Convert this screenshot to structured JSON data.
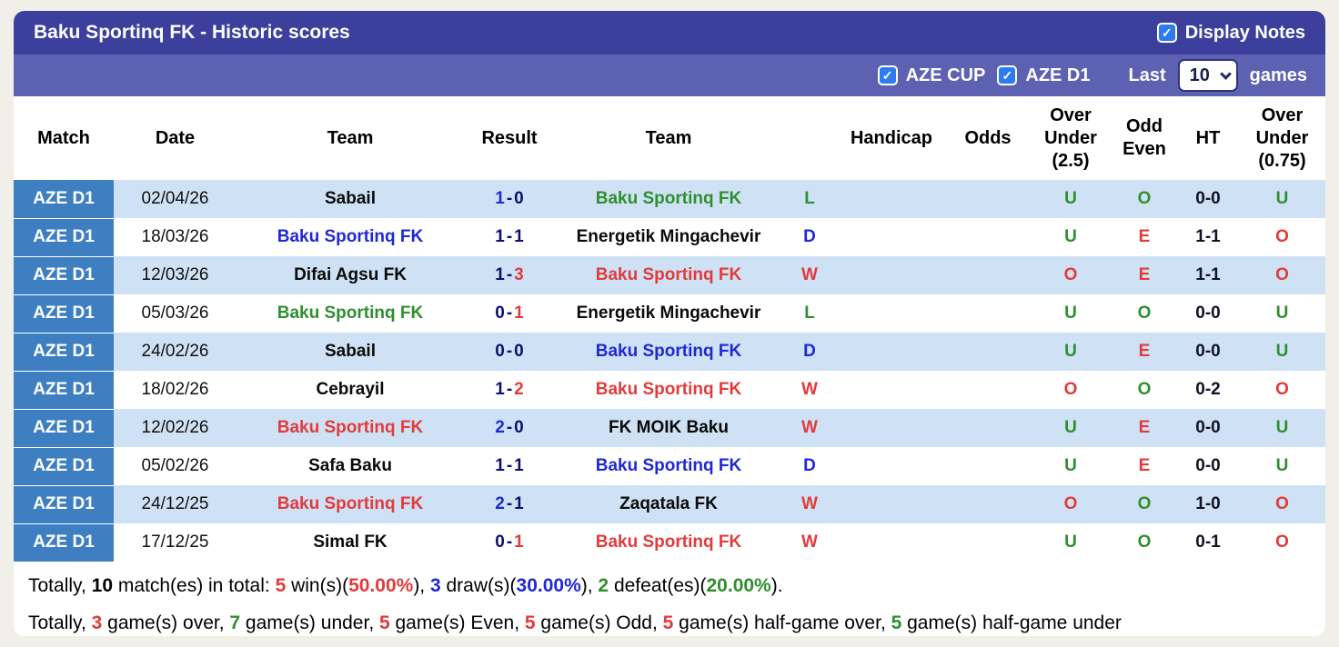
{
  "header": {
    "title": "Baku Sportinq FK - Historic scores",
    "display_notes_label": "Display Notes",
    "display_notes_checked": true
  },
  "filter_bar": {
    "competitions": [
      {
        "label": "AZE CUP",
        "checked": true
      },
      {
        "label": "AZE D1",
        "checked": true
      }
    ],
    "last_label": "Last",
    "games_count": "10",
    "games_label": "games"
  },
  "table": {
    "columns": [
      "Match",
      "Date",
      "Team",
      "Result",
      "Team",
      "",
      "Handicap",
      "Odds",
      "Over\nUnder\n(2.5)",
      "Odd\nEven",
      "HT",
      "Over\nUnder\n(0.75)"
    ],
    "rows": [
      {
        "match": "AZE D1",
        "date": "02/04/26",
        "home": {
          "name": "Sabail",
          "color": "black"
        },
        "result": {
          "h": "1",
          "hc": "blue",
          "a": "0",
          "ac": "navy"
        },
        "away": {
          "name": "Baku Sportinq FK",
          "color": "green"
        },
        "outcome": {
          "v": "L",
          "color": "green"
        },
        "handicap": "",
        "odds": "",
        "ou25": {
          "v": "U",
          "color": "green"
        },
        "oe": {
          "v": "O",
          "color": "green"
        },
        "ht": "0-0",
        "ou075": {
          "v": "U",
          "color": "green"
        }
      },
      {
        "match": "AZE D1",
        "date": "18/03/26",
        "home": {
          "name": "Baku Sportinq FK",
          "color": "blue"
        },
        "result": {
          "h": "1",
          "hc": "navy",
          "a": "1",
          "ac": "navy"
        },
        "away": {
          "name": "Energetik Mingachevir",
          "color": "black"
        },
        "outcome": {
          "v": "D",
          "color": "blue"
        },
        "handicap": "",
        "odds": "",
        "ou25": {
          "v": "U",
          "color": "green"
        },
        "oe": {
          "v": "E",
          "color": "red"
        },
        "ht": "1-1",
        "ou075": {
          "v": "O",
          "color": "red"
        }
      },
      {
        "match": "AZE D1",
        "date": "12/03/26",
        "home": {
          "name": "Difai Agsu FK",
          "color": "black"
        },
        "result": {
          "h": "1",
          "hc": "navy",
          "a": "3",
          "ac": "red"
        },
        "away": {
          "name": "Baku Sportinq FK",
          "color": "red"
        },
        "outcome": {
          "v": "W",
          "color": "red"
        },
        "handicap": "",
        "odds": "",
        "ou25": {
          "v": "O",
          "color": "red"
        },
        "oe": {
          "v": "E",
          "color": "red"
        },
        "ht": "1-1",
        "ou075": {
          "v": "O",
          "color": "red"
        }
      },
      {
        "match": "AZE D1",
        "date": "05/03/26",
        "home": {
          "name": "Baku Sportinq FK",
          "color": "green"
        },
        "result": {
          "h": "0",
          "hc": "navy",
          "a": "1",
          "ac": "red"
        },
        "away": {
          "name": "Energetik Mingachevir",
          "color": "black"
        },
        "outcome": {
          "v": "L",
          "color": "green"
        },
        "handicap": "",
        "odds": "",
        "ou25": {
          "v": "U",
          "color": "green"
        },
        "oe": {
          "v": "O",
          "color": "green"
        },
        "ht": "0-0",
        "ou075": {
          "v": "U",
          "color": "green"
        }
      },
      {
        "match": "AZE D1",
        "date": "24/02/26",
        "home": {
          "name": "Sabail",
          "color": "black"
        },
        "result": {
          "h": "0",
          "hc": "navy",
          "a": "0",
          "ac": "navy"
        },
        "away": {
          "name": "Baku Sportinq FK",
          "color": "blue"
        },
        "outcome": {
          "v": "D",
          "color": "blue"
        },
        "handicap": "",
        "odds": "",
        "ou25": {
          "v": "U",
          "color": "green"
        },
        "oe": {
          "v": "E",
          "color": "red"
        },
        "ht": "0-0",
        "ou075": {
          "v": "U",
          "color": "green"
        }
      },
      {
        "match": "AZE D1",
        "date": "18/02/26",
        "home": {
          "name": "Cebrayil",
          "color": "black"
        },
        "result": {
          "h": "1",
          "hc": "navy",
          "a": "2",
          "ac": "red"
        },
        "away": {
          "name": "Baku Sportinq FK",
          "color": "red"
        },
        "outcome": {
          "v": "W",
          "color": "red"
        },
        "handicap": "",
        "odds": "",
        "ou25": {
          "v": "O",
          "color": "red"
        },
        "oe": {
          "v": "O",
          "color": "green"
        },
        "ht": "0-2",
        "ou075": {
          "v": "O",
          "color": "red"
        }
      },
      {
        "match": "AZE D1",
        "date": "12/02/26",
        "home": {
          "name": "Baku Sportinq FK",
          "color": "red"
        },
        "result": {
          "h": "2",
          "hc": "blue",
          "a": "0",
          "ac": "navy"
        },
        "away": {
          "name": "FK MOIK Baku",
          "color": "black"
        },
        "outcome": {
          "v": "W",
          "color": "red"
        },
        "handicap": "",
        "odds": "",
        "ou25": {
          "v": "U",
          "color": "green"
        },
        "oe": {
          "v": "E",
          "color": "red"
        },
        "ht": "0-0",
        "ou075": {
          "v": "U",
          "color": "green"
        }
      },
      {
        "match": "AZE D1",
        "date": "05/02/26",
        "home": {
          "name": "Safa Baku",
          "color": "black"
        },
        "result": {
          "h": "1",
          "hc": "navy",
          "a": "1",
          "ac": "navy"
        },
        "away": {
          "name": "Baku Sportinq FK",
          "color": "blue"
        },
        "outcome": {
          "v": "D",
          "color": "blue"
        },
        "handicap": "",
        "odds": "",
        "ou25": {
          "v": "U",
          "color": "green"
        },
        "oe": {
          "v": "E",
          "color": "red"
        },
        "ht": "0-0",
        "ou075": {
          "v": "U",
          "color": "green"
        }
      },
      {
        "match": "AZE D1",
        "date": "24/12/25",
        "home": {
          "name": "Baku Sportinq FK",
          "color": "red"
        },
        "result": {
          "h": "2",
          "hc": "blue",
          "a": "1",
          "ac": "navy"
        },
        "away": {
          "name": "Zaqatala FK",
          "color": "black"
        },
        "outcome": {
          "v": "W",
          "color": "red"
        },
        "handicap": "",
        "odds": "",
        "ou25": {
          "v": "O",
          "color": "red"
        },
        "oe": {
          "v": "O",
          "color": "green"
        },
        "ht": "1-0",
        "ou075": {
          "v": "O",
          "color": "red"
        }
      },
      {
        "match": "AZE D1",
        "date": "17/12/25",
        "home": {
          "name": "Simal FK",
          "color": "black"
        },
        "result": {
          "h": "0",
          "hc": "navy",
          "a": "1",
          "ac": "red"
        },
        "away": {
          "name": "Baku Sportinq FK",
          "color": "red"
        },
        "outcome": {
          "v": "W",
          "color": "red"
        },
        "handicap": "",
        "odds": "",
        "ou25": {
          "v": "U",
          "color": "green"
        },
        "oe": {
          "v": "O",
          "color": "green"
        },
        "ht": "0-1",
        "ou075": {
          "v": "O",
          "color": "red"
        }
      }
    ]
  },
  "summary": {
    "line1": [
      {
        "t": "Totally, "
      },
      {
        "t": "10",
        "b": true
      },
      {
        "t": " match(es) in total: "
      },
      {
        "t": "5",
        "c": "red",
        "b": true
      },
      {
        "t": " win(s)("
      },
      {
        "t": "50.00%",
        "c": "red",
        "b": true
      },
      {
        "t": "), "
      },
      {
        "t": "3",
        "c": "blue",
        "b": true
      },
      {
        "t": " draw(s)("
      },
      {
        "t": "30.00%",
        "c": "blue",
        "b": true
      },
      {
        "t": "), "
      },
      {
        "t": "2",
        "c": "green",
        "b": true
      },
      {
        "t": " defeat(es)("
      },
      {
        "t": "20.00%",
        "c": "green",
        "b": true
      },
      {
        "t": ")."
      }
    ],
    "line2": [
      {
        "t": "Totally, "
      },
      {
        "t": "3",
        "c": "red",
        "b": true
      },
      {
        "t": " game(s) over, "
      },
      {
        "t": "7",
        "c": "green",
        "b": true
      },
      {
        "t": " game(s) under, "
      },
      {
        "t": "5",
        "c": "red",
        "b": true
      },
      {
        "t": " game(s) Even, "
      },
      {
        "t": "5",
        "c": "red",
        "b": true
      },
      {
        "t": " game(s) Odd, "
      },
      {
        "t": "5",
        "c": "red",
        "b": true
      },
      {
        "t": " game(s) half-game over, "
      },
      {
        "t": "5",
        "c": "green",
        "b": true
      },
      {
        "t": " game(s) half-game under"
      }
    ]
  },
  "colors": {
    "red": "#e23b3b",
    "green": "#2f8f2f",
    "blue": "#2028d4",
    "navy": "#0c0f72",
    "black": "#0a0a0a",
    "title_bar": "#3c409c",
    "filter_bar": "#5d61b2",
    "match_cell": "#3e7fc2",
    "row_alt": "#cfe2f5",
    "checkbox": "#2e7bf0"
  }
}
